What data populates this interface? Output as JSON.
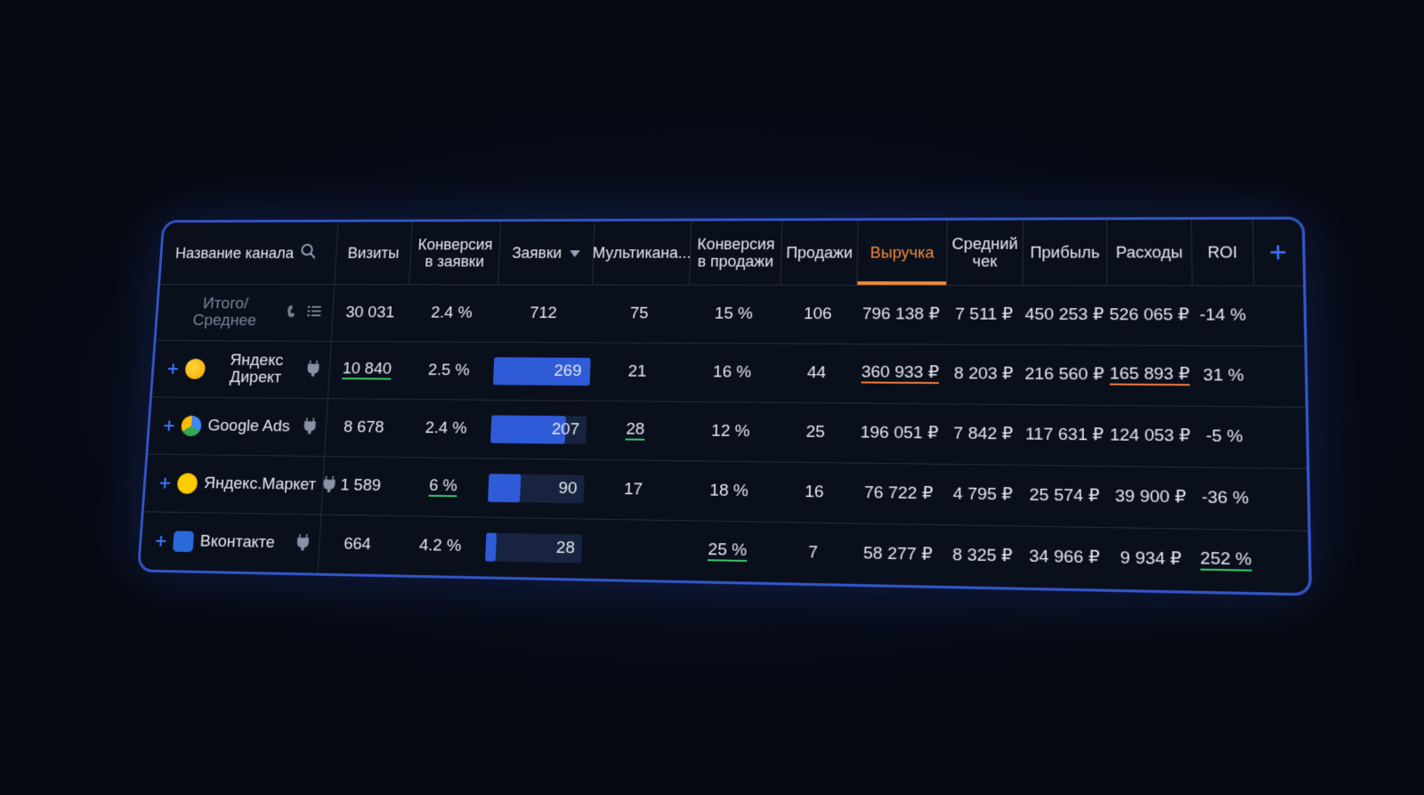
{
  "table": {
    "headers": [
      "Название канала",
      "Визиты",
      "Конверсия\nв заявки",
      "Заявки",
      "Мультикана...",
      "Конверсия\nв продажи",
      "Продажи",
      "Выручка",
      "Средний\nчек",
      "Прибыль",
      "Расходы",
      "ROI"
    ],
    "rows": [
      [
        "Итого/Среднее",
        "30 031",
        "2.4 %",
        "712",
        "75",
        "15 %",
        "106",
        "796 138 ₽",
        "7 511 ₽",
        "450 253 ₽",
        "526 065 ₽",
        "-14 %"
      ],
      [
        "Яндекс Директ",
        "10 840",
        "2.5 %",
        "269",
        "21",
        "16 %",
        "44",
        "360 933 ₽",
        "8 203 ₽",
        "216 560 ₽",
        "165 893 ₽",
        "31 %"
      ],
      [
        "Google Ads",
        "8 678",
        "2.4 %",
        "207",
        "28",
        "12 %",
        "25",
        "196 051 ₽",
        "7 842 ₽",
        "117 631 ₽",
        "124 053 ₽",
        "-5 %"
      ],
      [
        "Яндекс.Маркет",
        "1 589",
        "6 %",
        "90",
        "17",
        "18 %",
        "16",
        "76 722 ₽",
        "4 795 ₽",
        "25 574 ₽",
        "39 900 ₽",
        "-36 %"
      ],
      [
        "Вконтакте",
        "664",
        "4.2 %",
        "28",
        null,
        "25 %",
        "7",
        "58 277 ₽",
        "8 325 ₽",
        "34 966 ₽",
        "9 934 ₽",
        "252 %"
      ]
    ]
  }
}
